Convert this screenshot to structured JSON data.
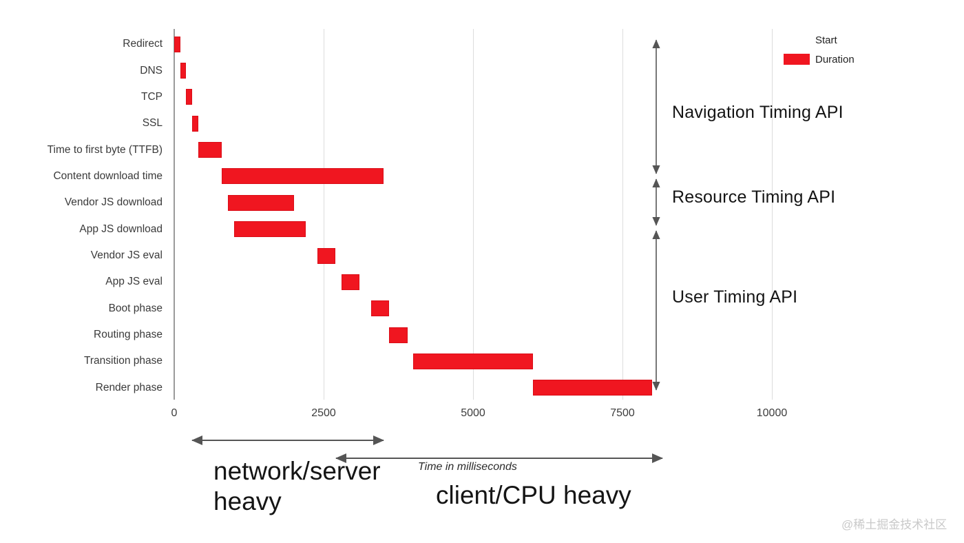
{
  "watermark": "@稀土掘金技术社区",
  "colors": {
    "bar": "#f01620",
    "bar_edge": "#c80710",
    "gridline": "#dcdcdc",
    "axis_line": "#9a9a9a",
    "arrow": "#555555",
    "text": "#3a3a3a",
    "annotation_text": "#141414",
    "watermark_text": "#c9c9c9",
    "legend_start_swatch": "#ffffff"
  },
  "legend": {
    "items": [
      {
        "label": "Start",
        "color": "#ffffff"
      },
      {
        "label": "Duration",
        "color": "#f01620"
      }
    ]
  },
  "annotations": {
    "navigation_api": "Navigation Timing API",
    "resource_api": "Resource Timing API",
    "user_api": "User Timing API",
    "network_heavy": "network/server heavy",
    "client_heavy": "client/CPU heavy"
  },
  "chart_data": {
    "type": "bar",
    "orientation": "horizontal",
    "title": "",
    "xlabel": "Time in milliseconds",
    "unit": "ms",
    "xlim": [
      0,
      10000
    ],
    "xticks": [
      0,
      2500,
      5000,
      7500,
      10000
    ],
    "grid": true,
    "legend_position": "top-right",
    "legend": [
      "Start",
      "Duration"
    ],
    "categories": [
      "Redirect",
      "DNS",
      "TCP",
      "SSL",
      "Time to first byte (TTFB)",
      "Content download time",
      "Vendor JS download",
      "App JS download",
      "Vendor JS eval",
      "App JS eval",
      "Boot phase",
      "Routing phase",
      "Transition phase",
      "Render phase"
    ],
    "bars": [
      {
        "label": "Redirect",
        "start": 0,
        "end": 100,
        "duration": 100
      },
      {
        "label": "DNS",
        "start": 100,
        "end": 200,
        "duration": 100
      },
      {
        "label": "TCP",
        "start": 200,
        "end": 300,
        "duration": 100
      },
      {
        "label": "SSL",
        "start": 300,
        "end": 400,
        "duration": 100
      },
      {
        "label": "Time to first byte (TTFB)",
        "start": 400,
        "end": 800,
        "duration": 400
      },
      {
        "label": "Content download time",
        "start": 800,
        "end": 3500,
        "duration": 2700
      },
      {
        "label": "Vendor JS download",
        "start": 900,
        "end": 2000,
        "duration": 1100
      },
      {
        "label": "App JS download",
        "start": 1000,
        "end": 2200,
        "duration": 1200
      },
      {
        "label": "Vendor JS eval",
        "start": 2400,
        "end": 2700,
        "duration": 300
      },
      {
        "label": "App JS eval",
        "start": 2800,
        "end": 3100,
        "duration": 300
      },
      {
        "label": "Boot phase",
        "start": 3300,
        "end": 3600,
        "duration": 300
      },
      {
        "label": "Routing phase",
        "start": 3600,
        "end": 3900,
        "duration": 300
      },
      {
        "label": "Transition phase",
        "start": 4000,
        "end": 6000,
        "duration": 2000
      },
      {
        "label": "Render phase",
        "start": 6000,
        "end": 8000,
        "duration": 2000
      }
    ],
    "api_groups": [
      {
        "label": "Navigation Timing API",
        "from_row": 0,
        "to_row": 4
      },
      {
        "label": "Resource Timing API",
        "from_row": 5,
        "to_row": 7
      },
      {
        "label": "User Timing API",
        "from_row": 8,
        "to_row": 13
      }
    ],
    "range_annotations": [
      {
        "label": "network/server heavy",
        "from_ms": 250,
        "to_ms": 3550
      },
      {
        "label": "client/CPU heavy",
        "from_ms": 2650,
        "to_ms": 8250
      }
    ]
  }
}
